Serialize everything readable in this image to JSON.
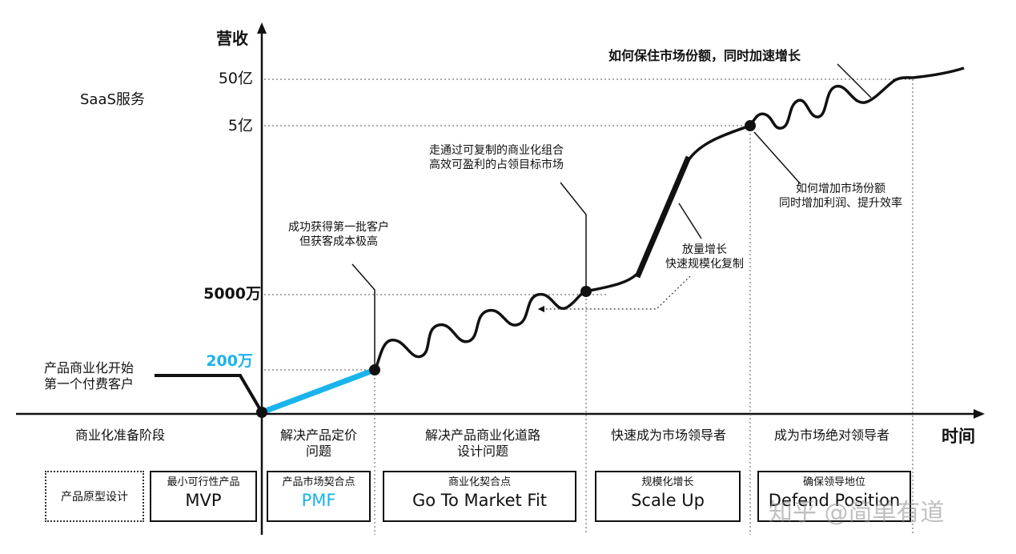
{
  "axes": {
    "y_label": "营收",
    "x_label": "时间"
  },
  "service_label": "SaaS服务",
  "y_ticks": [
    "50亿",
    "5亿",
    "5000万",
    "200万"
  ],
  "annotations": {
    "start": [
      "产品商业化开始",
      "第一个付费客户"
    ],
    "first_customers": [
      "成功获得第一批客户",
      "但获客成本极高"
    ],
    "replicable": [
      "走通过可复制的商业化组合",
      "高效可盈利的占领目标市场"
    ],
    "scale": [
      "放量增长",
      "快速规模化复制"
    ],
    "share": [
      "如何增加市场份额",
      "同时增加利润、提升效率"
    ],
    "top": "如何保住市场份额，同时加速增长"
  },
  "phases": [
    [
      "商业化准备阶段"
    ],
    [
      "解决产品定价",
      "问题"
    ],
    [
      "解决产品商业化道路",
      "设计问题"
    ],
    [
      "快速成为市场领导者"
    ],
    [
      "成为市场绝对领导者"
    ]
  ],
  "boxes": {
    "prototype": "产品原型设计",
    "mvp": {
      "sub": "最小可行性产品",
      "main": "MVP"
    },
    "pmf": {
      "sub": "产品市场契合点",
      "main": "PMF"
    },
    "gtm": {
      "sub": "商业化契合点",
      "main": "Go To Market Fit"
    },
    "scale": {
      "sub": "规模化增长",
      "main": "Scale Up"
    },
    "defend": {
      "sub": "确保领导地位",
      "main": "Defend Position"
    }
  },
  "watermark": "知乎 @简单有道",
  "colors": {
    "accent": "#1ab3ec",
    "line": "#111111"
  }
}
